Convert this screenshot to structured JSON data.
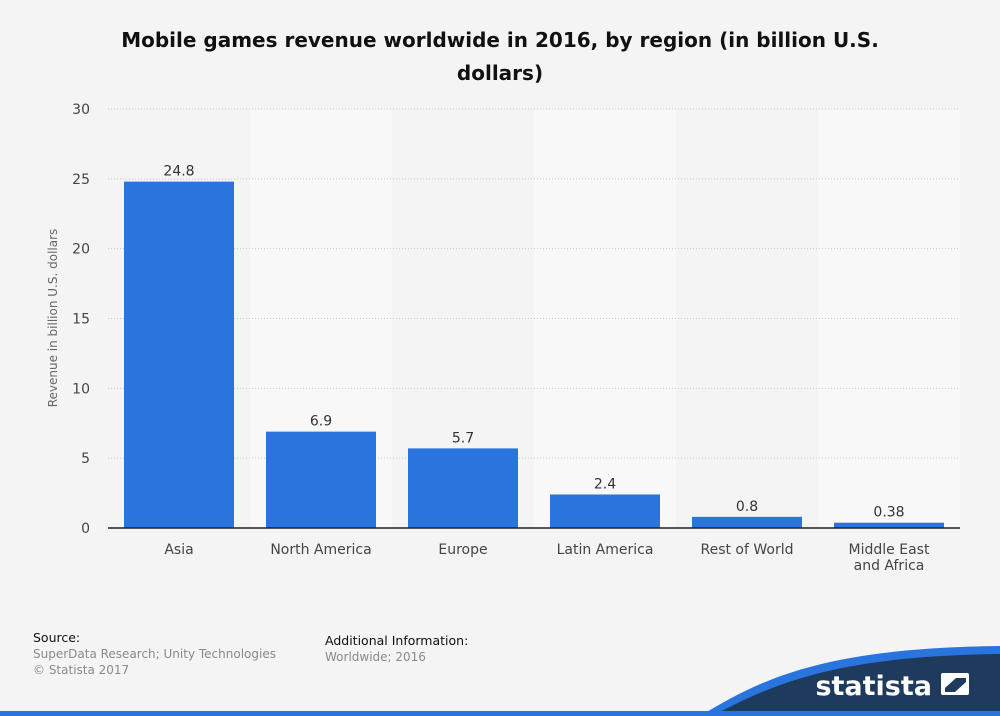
{
  "chart_data": {
    "type": "bar",
    "title": "Mobile games revenue worldwide in 2016, by region (in billion U.S. dollars)",
    "ylabel": "Revenue in billion U.S. dollars",
    "xlabel": "",
    "categories": [
      "Asia",
      "North America",
      "Europe",
      "Latin America",
      "Rest of World",
      "Middle East and Africa"
    ],
    "category_lines": [
      [
        "Asia"
      ],
      [
        "North America"
      ],
      [
        "Europe"
      ],
      [
        "Latin America"
      ],
      [
        "Rest of World"
      ],
      [
        "Middle East",
        "and Africa"
      ]
    ],
    "values": [
      24.8,
      6.9,
      5.7,
      2.4,
      0.8,
      0.38
    ],
    "value_labels": [
      "24.8",
      "6.9",
      "5.7",
      "2.4",
      "0.8",
      "0.38"
    ],
    "ylim": [
      0,
      30
    ],
    "yticks": [
      0,
      5,
      10,
      15,
      20,
      25,
      30
    ],
    "grid": true,
    "legend": "none",
    "bar_color": "#2a74de"
  },
  "footer": {
    "source_heading": "Source:",
    "source_text": "SuperData Research; Unity Technologies",
    "copyright": "© Statista 2017",
    "additional_heading": "Additional Information:",
    "additional_text": "Worldwide; 2016"
  },
  "brand": {
    "name": "statista",
    "wave_color": "#1e3a5c",
    "accent_color": "#2a74de"
  }
}
